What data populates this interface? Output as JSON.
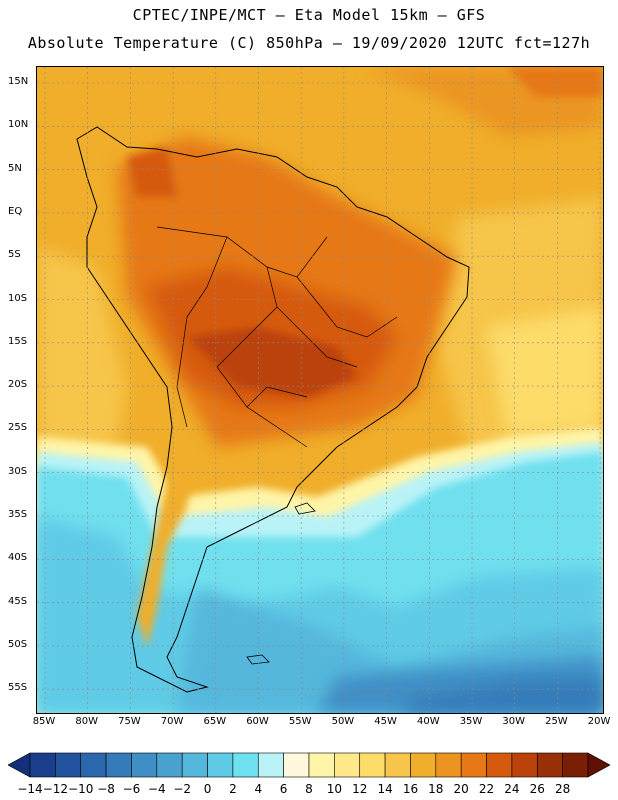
{
  "header": {
    "line1": "CPTEC/INPE/MCT –  Eta Model 15km – GFS",
    "line2": "Absolute Temperature (C) 850hPa – 19/09/2020 12UTC fct=127h"
  },
  "map": {
    "lat_ticks": [
      "15N",
      "10N",
      "5N",
      "EQ",
      "5S",
      "10S",
      "15S",
      "20S",
      "25S",
      "30S",
      "35S",
      "40S",
      "45S",
      "50S",
      "55S"
    ],
    "lon_ticks": [
      "85W",
      "80W",
      "75W",
      "70W",
      "65W",
      "60W",
      "55W",
      "50W",
      "45W",
      "40W",
      "35W",
      "30W",
      "25W",
      "20W"
    ]
  },
  "colorbar": {
    "labels": [
      "-14",
      "-12",
      "-10",
      "-8",
      "-6",
      "-4",
      "-2",
      "0",
      "2",
      "4",
      "6",
      "8",
      "10",
      "12",
      "14",
      "16",
      "18",
      "20",
      "22",
      "24",
      "26",
      "28"
    ],
    "colors": [
      "#1a3e8c",
      "#23529e",
      "#2b67ad",
      "#357bba",
      "#3f8fc6",
      "#4aa2d1",
      "#55b7dc",
      "#5fcbe6",
      "#6fe0ef",
      "#b9f3f7",
      "#fff8dc",
      "#fff5a8",
      "#ffe98a",
      "#fddc6a",
      "#f6c54a",
      "#f0ae2a",
      "#eb9520",
      "#e67816",
      "#d65a0e",
      "#bb420a",
      "#993008",
      "#7a1f06"
    ],
    "under_color": "#14307a",
    "over_color": "#5e1004"
  }
}
